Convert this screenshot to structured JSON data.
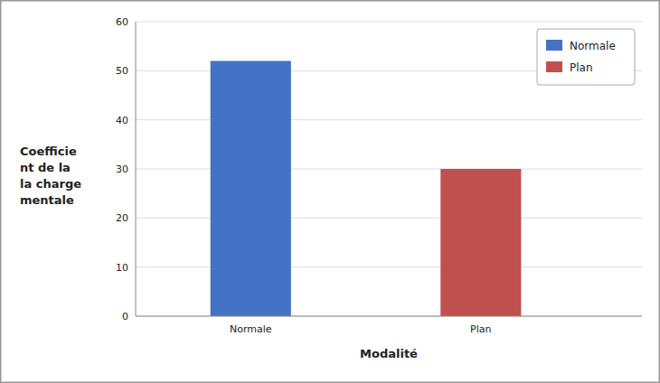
{
  "chart_data": {
    "type": "bar",
    "categories": [
      "Normale",
      "Plan"
    ],
    "values": [
      52,
      30
    ],
    "colors": [
      "#4472C4",
      "#C0504D"
    ],
    "xlabel": "Modalité",
    "ylabel": "Coefficie\nnt de la\nla charge\nmentale",
    "ylim": [
      0,
      60
    ],
    "yticks": [
      0,
      10,
      20,
      30,
      40,
      50,
      60
    ],
    "grid": true,
    "legend": "upper right"
  }
}
